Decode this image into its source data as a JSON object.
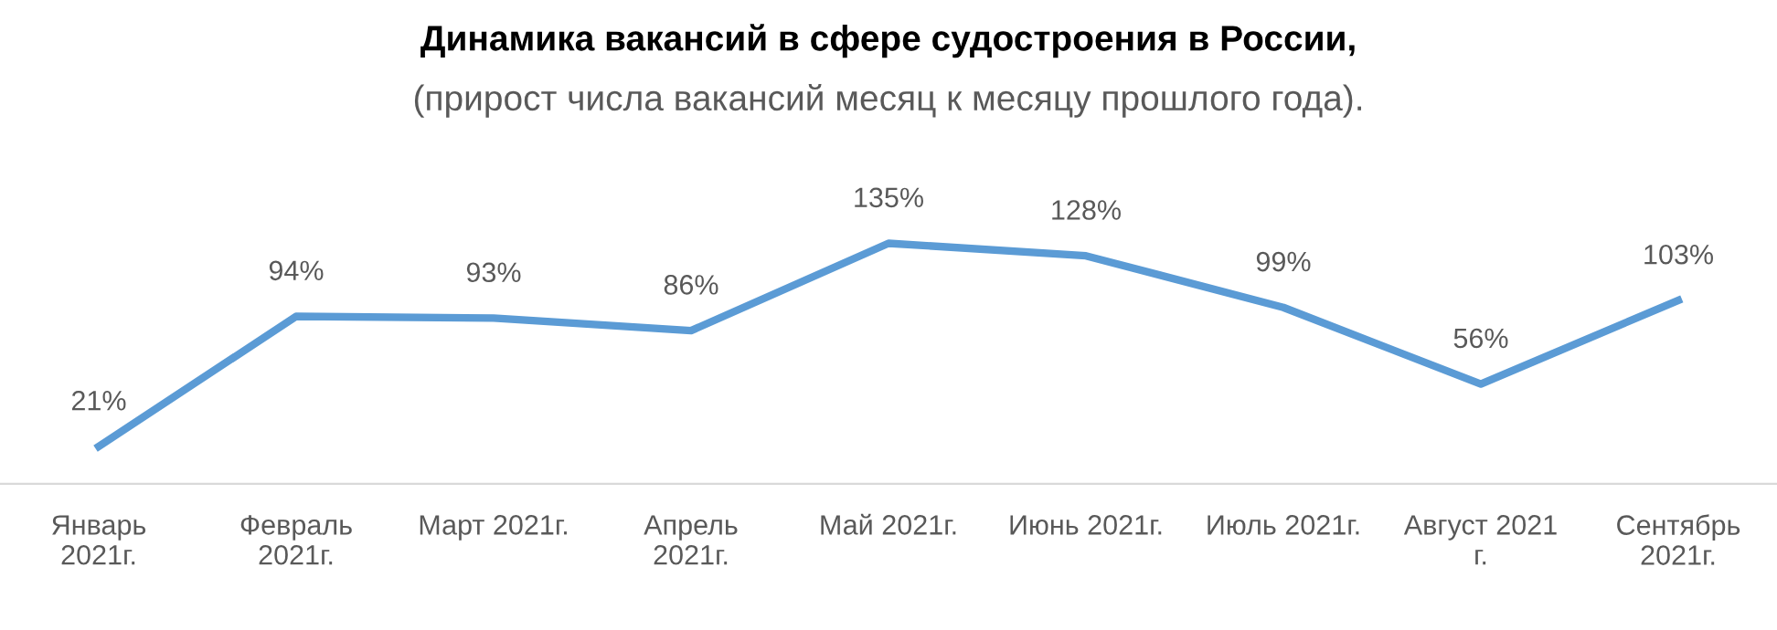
{
  "chart_data": {
    "type": "line",
    "title": "Динамика вакансий в сфере судостроения в России,",
    "subtitle": "(прирост числа вакансий месяц к месяцу прошлого года).",
    "categories": [
      "Январь\n2021г.",
      "Февраль\n2021г.",
      "Март 2021г.",
      "Апрель\n2021г.",
      "Май 2021г.",
      "Июнь 2021г.",
      "Июль 2021г.",
      "Август 2021\nг.",
      "Сентябрь\n2021г."
    ],
    "series": [
      {
        "color": "#5b9bd5",
        "values": [
          21,
          94,
          93,
          86,
          135,
          128,
          99,
          56,
          103
        ],
        "value_labels": [
          "21%",
          "94%",
          "93%",
          "86%",
          "135%",
          "128%",
          "99%",
          "56%",
          "103%"
        ]
      }
    ],
    "tick_labels": "x",
    "grid": false,
    "legend": false,
    "marker": "none",
    "line_style": "solid"
  }
}
